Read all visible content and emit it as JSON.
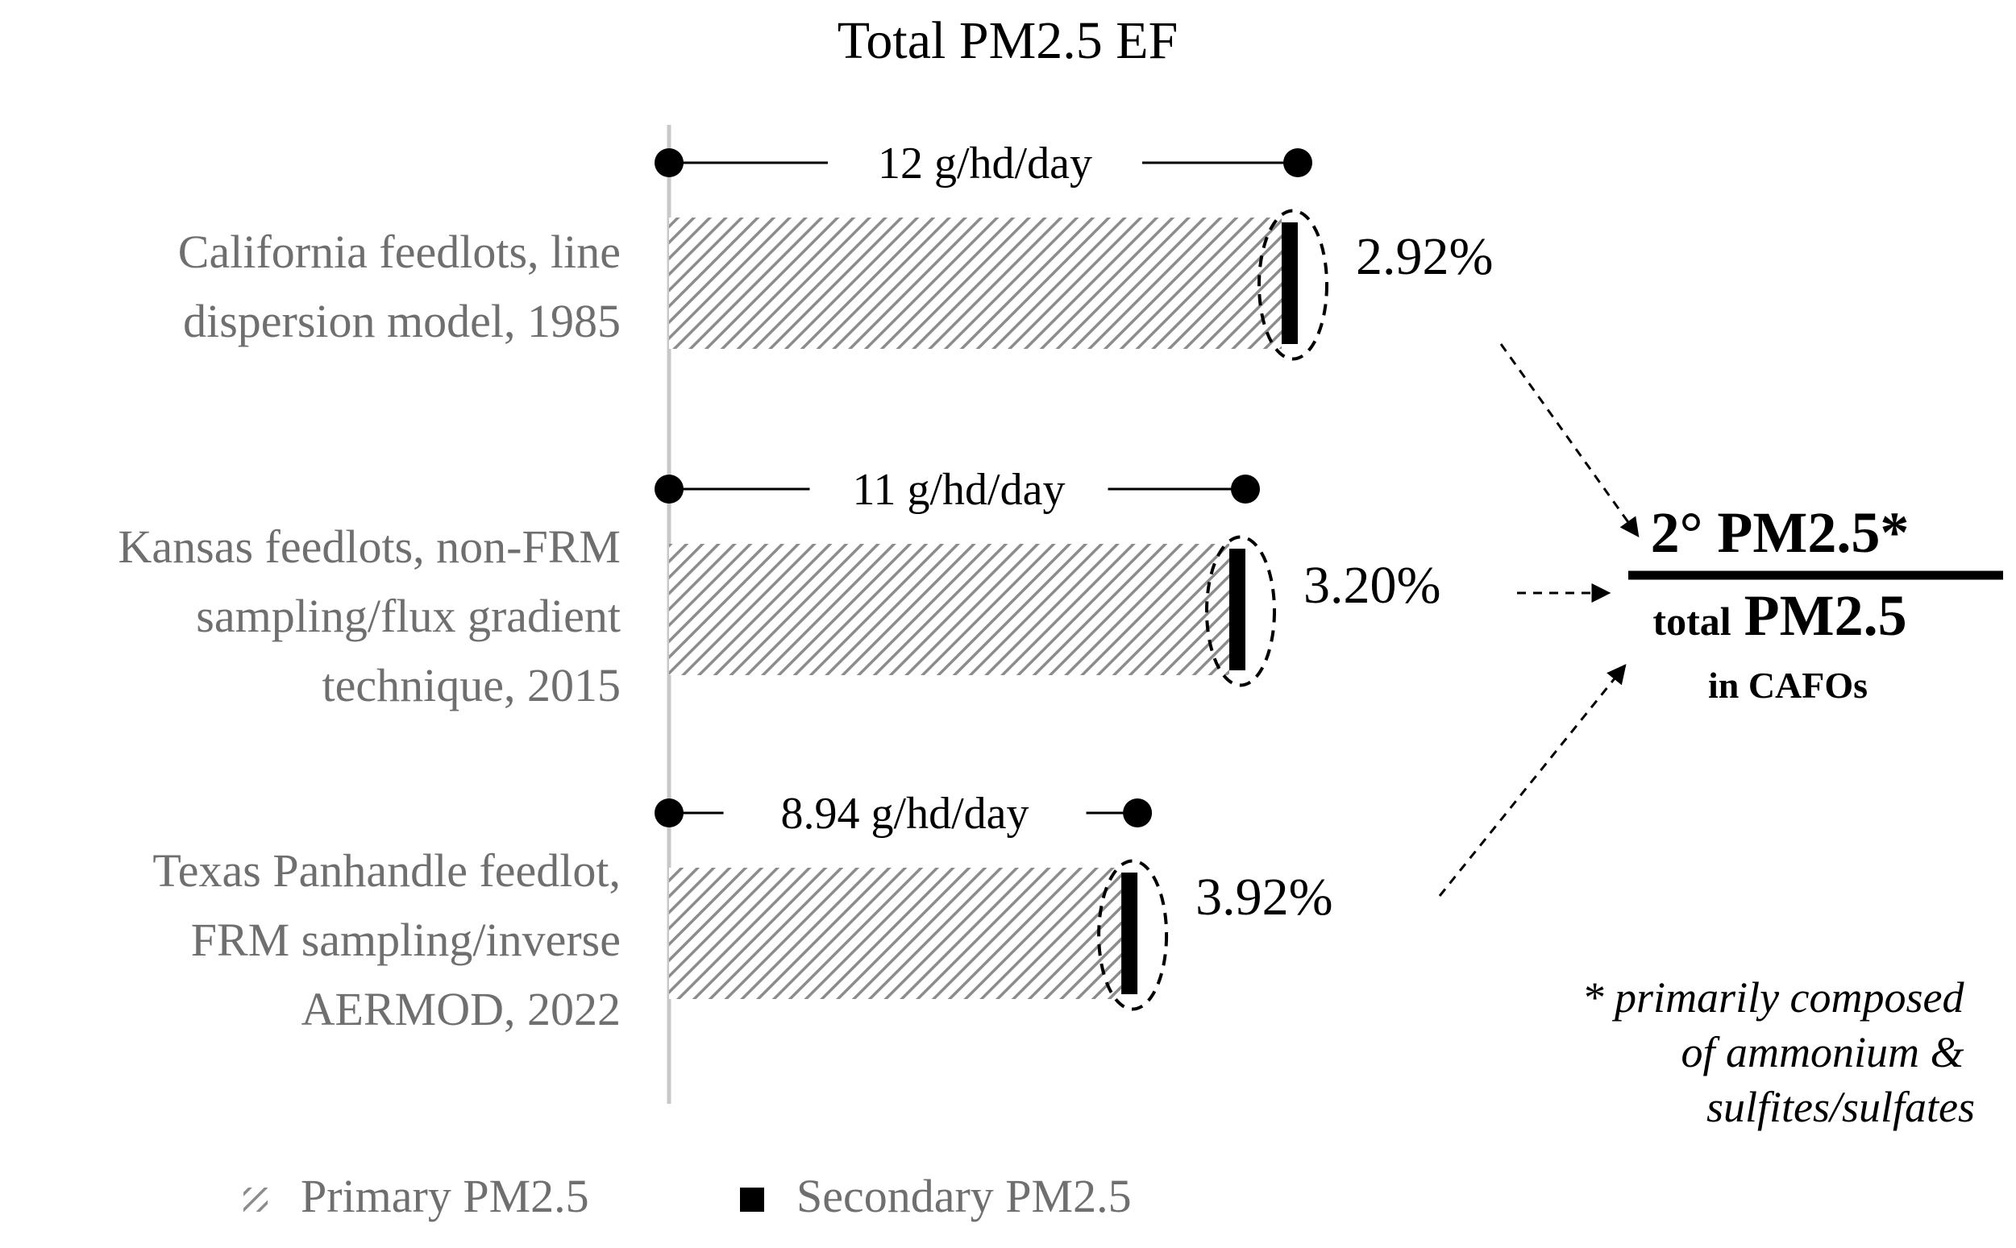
{
  "chart_data": {
    "type": "bar",
    "title": "Total PM2.5 EF",
    "unit": "g/hd/day",
    "categories": [
      [
        "California feedlots, line",
        "dispersion model, 1985"
      ],
      [
        "Kansas feedlots, non-FRM",
        "sampling/flux gradient",
        "technique, 2015"
      ],
      [
        "Texas Panhandle feedlot,",
        "FRM sampling/inverse",
        "AERMOD, 2022"
      ]
    ],
    "totals": [
      12,
      11,
      8.94
    ],
    "total_labels": [
      "12 g/hd/day",
      "11 g/hd/day",
      "8.94 g/hd/day"
    ],
    "secondary_percent": [
      2.92,
      3.2,
      3.92
    ],
    "secondary_percent_labels": [
      "2.92%",
      "3.20%",
      "3.92%"
    ],
    "series": [
      {
        "name": "Primary PM2.5",
        "pattern": "hatched-gray"
      },
      {
        "name": "Secondary PM2.5",
        "color": "#000000"
      }
    ],
    "legend_position": "bottom-left",
    "grid": false,
    "ratio_box": {
      "numerator": "2° PM2.5*",
      "denominator_small": "total",
      "denominator_large": "PM2.5",
      "context": "in CAFOs"
    },
    "footnote": [
      "* primarily composed",
      "of ammonium &",
      "sulfites/sulfates"
    ]
  },
  "colors": {
    "primary_hatch": "#8c8c8c",
    "secondary": "#000000",
    "category_text": "#6f6f6f",
    "axis_line": "#c8c8c8"
  }
}
